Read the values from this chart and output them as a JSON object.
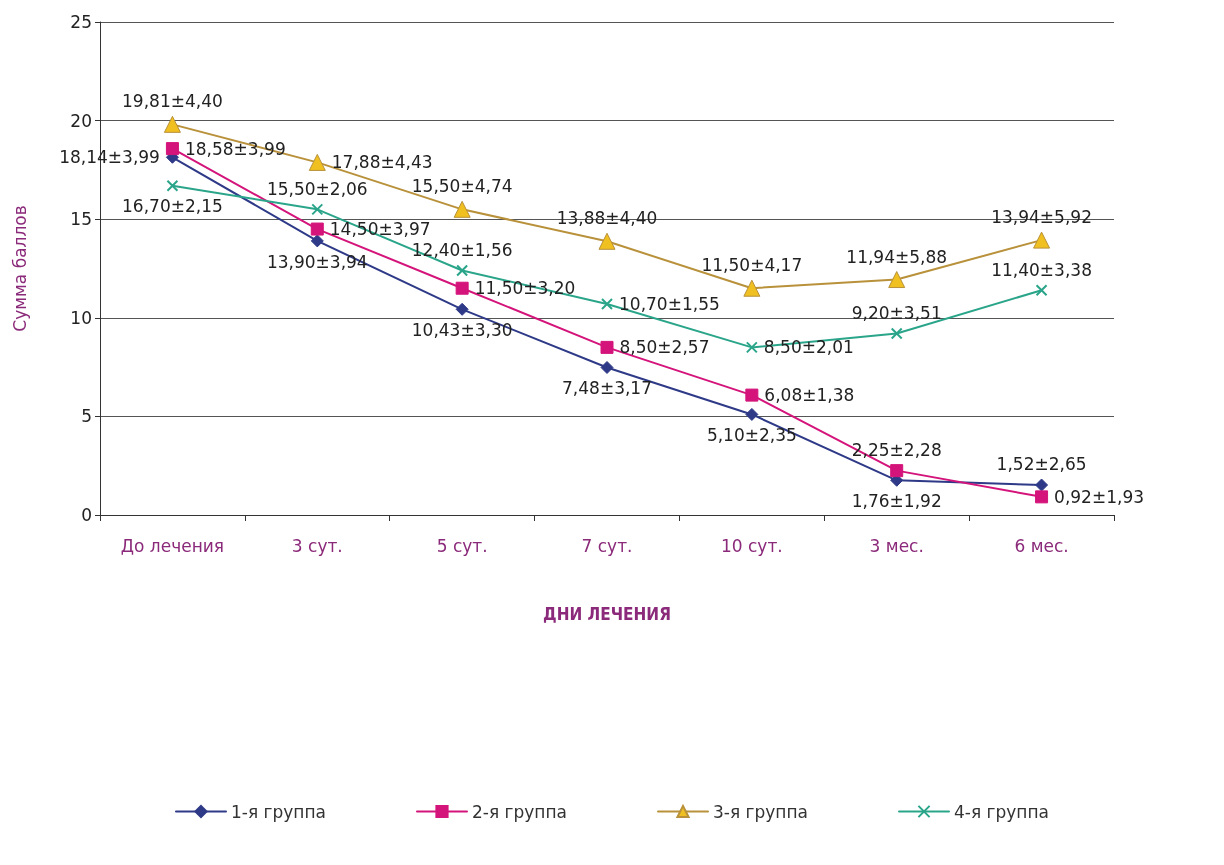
{
  "chart_data": {
    "type": "line",
    "xlabel": "ДНИ ЛЕЧЕНИЯ",
    "ylabel": "Сумма баллов",
    "categories": [
      "До лечения",
      "3 сут.",
      "5 сут.",
      "7 сут.",
      "10 сут.",
      "3 мес.",
      "6 мес."
    ],
    "series": [
      {
        "name": "1-я группа",
        "color": "#2e3a87",
        "marker": "diamond",
        "values": [
          18.14,
          13.9,
          10.43,
          7.48,
          5.1,
          1.76,
          1.52
        ],
        "value_labels": [
          "18,14±3,99",
          "13,90±3,94",
          "10,43±3,30",
          "7,48±3,17",
          "5,10±2,35",
          "1,76±1,92",
          "1,52±2,65"
        ]
      },
      {
        "name": "2-я группа",
        "color": "#d4147a",
        "marker": "square",
        "values": [
          18.58,
          14.5,
          11.5,
          8.5,
          6.08,
          2.25,
          0.92
        ],
        "value_labels": [
          "18,58±3,99",
          "14,50±3,97",
          "11,50±3,20",
          "8,50±2,57",
          "6,08±1,38",
          "2,25±2,28",
          "0,92±1,93"
        ]
      },
      {
        "name": "3-я группа",
        "color": "#b8913a",
        "marker": "triangle",
        "values": [
          19.81,
          17.88,
          15.5,
          13.88,
          11.5,
          11.94,
          13.94
        ],
        "value_labels": [
          "19,81±4,40",
          "17,88±4,43",
          "15,50±4,74",
          "13,88±4,40",
          "11,50±4,17",
          "11,94±5,88",
          "13,94±5,92"
        ]
      },
      {
        "name": "4-я группа",
        "color": "#2aa58a",
        "marker": "cross",
        "values": [
          16.7,
          15.5,
          12.4,
          10.7,
          8.5,
          9.2,
          11.4
        ],
        "value_labels": [
          "16,70±2,15",
          "15,50±2,06",
          "12,40±1,56",
          "10,70±1,55",
          "8,50±2,01",
          "9,20±3,51",
          "11,40±3,38"
        ]
      }
    ],
    "ylim": [
      0,
      25
    ],
    "yticks": [
      0,
      5,
      10,
      15,
      20,
      25
    ],
    "grid": "y",
    "legend": "bottom"
  }
}
